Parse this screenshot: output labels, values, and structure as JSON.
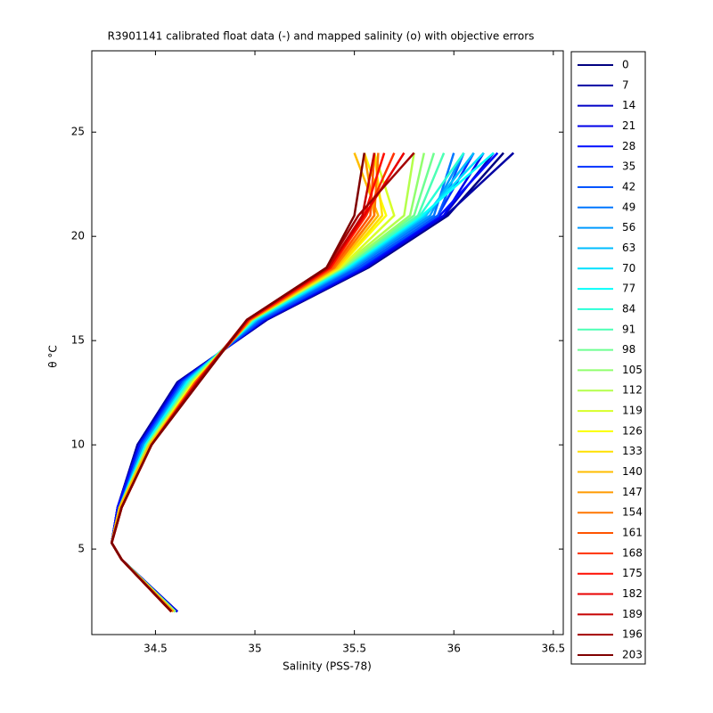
{
  "chart_data": {
    "type": "line",
    "title": "R3901141 calibrated float data (-) and mapped salinity (o) with objective errors",
    "x_label": "Salinity (PSS-78)",
    "y_label": "θ °C",
    "xlim": [
      34.18,
      36.55
    ],
    "ylim": [
      0.9,
      28.9
    ],
    "xticks": [
      34.5,
      35,
      35.5,
      36,
      36.5
    ],
    "yticks": [
      5,
      10,
      15,
      20,
      25
    ],
    "legend": "outside right",
    "series": [
      {
        "name": "0",
        "color": "#000080",
        "x": [
          34.61,
          34.33,
          34.28,
          34.31,
          34.41,
          34.61,
          35.06,
          35.57,
          35.97,
          36.25
        ],
        "values": [
          2,
          4.5,
          5.3,
          7,
          10,
          13,
          16,
          18.5,
          21,
          24
        ]
      },
      {
        "name": "7",
        "color": "#0000a3",
        "x": [
          34.61,
          34.33,
          34.28,
          34.31,
          34.41,
          34.61,
          35.06,
          35.56,
          35.96,
          36.3
        ],
        "values": [
          2,
          4.5,
          5.3,
          7,
          10,
          13,
          16,
          18.5,
          21,
          24
        ]
      },
      {
        "name": "14",
        "color": "#0000c6",
        "x": [
          34.61,
          34.33,
          34.28,
          34.31,
          34.42,
          34.62,
          35.05,
          35.56,
          35.95,
          36.2
        ],
        "values": [
          2,
          4.5,
          5.3,
          7,
          10,
          13,
          16,
          18.5,
          21,
          24
        ]
      },
      {
        "name": "21",
        "color": "#0000e9",
        "x": [
          34.61,
          34.33,
          34.28,
          34.31,
          34.42,
          34.62,
          35.05,
          35.55,
          35.95,
          36.15
        ],
        "values": [
          2,
          4.5,
          5.3,
          7,
          10,
          13,
          16,
          18.5,
          21,
          24
        ]
      },
      {
        "name": "28",
        "color": "#000dff",
        "x": [
          34.6,
          34.33,
          34.28,
          34.31,
          34.42,
          34.63,
          35.04,
          35.54,
          35.93,
          36.22
        ],
        "values": [
          2,
          4.5,
          5.3,
          7,
          10,
          13,
          16,
          18.5,
          21,
          24
        ]
      },
      {
        "name": "35",
        "color": "#0030ff",
        "x": [
          34.6,
          34.33,
          34.28,
          34.32,
          34.43,
          34.63,
          35.04,
          35.53,
          35.92,
          36.1
        ],
        "values": [
          2,
          4.5,
          5.3,
          7,
          10,
          13,
          16,
          18.5,
          21,
          24
        ]
      },
      {
        "name": "42",
        "color": "#0054ff",
        "x": [
          34.6,
          34.33,
          34.28,
          34.32,
          34.43,
          34.64,
          35.03,
          35.52,
          35.92,
          36.05
        ],
        "values": [
          2,
          4.5,
          5.3,
          7,
          10,
          13,
          16,
          18.5,
          21,
          24
        ]
      },
      {
        "name": "49",
        "color": "#0077ff",
        "x": [
          34.6,
          34.33,
          34.28,
          34.32,
          34.44,
          34.64,
          35.02,
          35.5,
          35.9,
          36.0
        ],
        "values": [
          2,
          4.5,
          5.3,
          7,
          10,
          13,
          16,
          18.5,
          21,
          24
        ]
      },
      {
        "name": "56",
        "color": "#009aff",
        "x": [
          34.6,
          34.33,
          34.28,
          34.32,
          34.44,
          34.65,
          35.01,
          35.49,
          35.88,
          36.05
        ],
        "values": [
          2,
          4.5,
          5.3,
          7,
          10,
          13,
          16,
          18.5,
          21,
          24
        ]
      },
      {
        "name": "63",
        "color": "#00bdff",
        "x": [
          34.6,
          34.33,
          34.28,
          34.32,
          34.45,
          34.65,
          35.01,
          35.48,
          35.86,
          36.1
        ],
        "values": [
          2,
          4.5,
          5.3,
          7,
          10,
          13,
          16,
          18.5,
          21,
          24
        ]
      },
      {
        "name": "70",
        "color": "#00e0ff",
        "x": [
          34.6,
          34.33,
          34.28,
          34.32,
          34.45,
          34.66,
          35.0,
          35.47,
          35.85,
          36.15
        ],
        "values": [
          2,
          4.5,
          5.3,
          7,
          10,
          13,
          16,
          18.5,
          21,
          24
        ]
      },
      {
        "name": "77",
        "color": "#04fffb",
        "x": [
          34.6,
          34.33,
          34.28,
          34.32,
          34.45,
          34.66,
          35.0,
          35.46,
          35.84,
          36.2
        ],
        "values": [
          2,
          4.5,
          5.3,
          7,
          10,
          13,
          16,
          18.5,
          21,
          24
        ]
      },
      {
        "name": "84",
        "color": "#28ffd7",
        "x": [
          34.6,
          34.33,
          34.28,
          34.32,
          34.46,
          34.67,
          34.99,
          35.45,
          35.83,
          36.05
        ],
        "values": [
          2,
          4.5,
          5.3,
          7,
          10,
          13,
          16,
          18.5,
          21,
          24
        ]
      },
      {
        "name": "91",
        "color": "#4bffb4",
        "x": [
          34.6,
          34.33,
          34.28,
          34.32,
          34.46,
          34.67,
          34.99,
          35.45,
          35.82,
          35.95
        ],
        "values": [
          2,
          4.5,
          5.3,
          7,
          10,
          13,
          16,
          18.5,
          21,
          24
        ]
      },
      {
        "name": "98",
        "color": "#6eff91",
        "x": [
          34.6,
          34.33,
          34.28,
          34.32,
          34.46,
          34.68,
          34.99,
          35.44,
          35.8,
          35.9
        ],
        "values": [
          2,
          4.5,
          5.3,
          7,
          10,
          13,
          16,
          18.5,
          21,
          24
        ]
      },
      {
        "name": "105",
        "color": "#91ff6e",
        "x": [
          34.6,
          34.33,
          34.28,
          34.32,
          34.46,
          34.68,
          34.98,
          35.44,
          35.78,
          35.85
        ],
        "values": [
          2,
          4.5,
          5.3,
          7,
          10,
          13,
          16,
          18.5,
          21,
          24
        ]
      },
      {
        "name": "112",
        "color": "#b4ff4b",
        "x": [
          34.59,
          34.33,
          34.28,
          34.32,
          34.47,
          34.69,
          34.98,
          35.43,
          35.75,
          35.8
        ],
        "values": [
          2,
          4.5,
          5.3,
          7,
          10,
          13,
          16,
          18.5,
          21,
          24
        ]
      },
      {
        "name": "119",
        "color": "#d7ff28",
        "x": [
          34.59,
          34.33,
          34.28,
          34.32,
          34.47,
          34.69,
          34.98,
          35.43,
          35.7,
          35.6
        ],
        "values": [
          2,
          4.5,
          5.3,
          7,
          10,
          13,
          16,
          18.5,
          21,
          24
        ]
      },
      {
        "name": "126",
        "color": "#fbff04",
        "x": [
          34.59,
          34.33,
          34.28,
          34.32,
          34.47,
          34.69,
          34.98,
          35.42,
          35.66,
          35.55
        ],
        "values": [
          2,
          4.5,
          5.3,
          7,
          10,
          13,
          16,
          18.5,
          21,
          24
        ]
      },
      {
        "name": "133",
        "color": "#ffe000",
        "x": [
          34.59,
          34.33,
          34.28,
          34.32,
          34.47,
          34.7,
          34.98,
          35.42,
          35.64,
          35.6
        ],
        "values": [
          2,
          4.5,
          5.3,
          7,
          10,
          13,
          16,
          18.5,
          21,
          24
        ]
      },
      {
        "name": "140",
        "color": "#ffbd00",
        "x": [
          34.59,
          34.33,
          34.28,
          34.32,
          34.47,
          34.7,
          34.98,
          35.41,
          35.62,
          35.5
        ],
        "values": [
          2,
          4.5,
          5.3,
          7,
          10,
          13,
          16,
          18.5,
          21,
          24
        ]
      },
      {
        "name": "147",
        "color": "#ff9a00",
        "x": [
          34.59,
          34.33,
          34.28,
          34.33,
          34.48,
          34.7,
          34.98,
          35.4,
          35.6,
          35.55
        ],
        "values": [
          2,
          4.5,
          5.3,
          7,
          10,
          13,
          16,
          18.5,
          21,
          24
        ]
      },
      {
        "name": "154",
        "color": "#ff7700",
        "x": [
          34.58,
          34.33,
          34.28,
          34.33,
          34.48,
          34.7,
          34.97,
          35.4,
          35.6,
          35.62
        ],
        "values": [
          2,
          4.5,
          5.3,
          7,
          10,
          13,
          16,
          18.5,
          21,
          24
        ]
      },
      {
        "name": "161",
        "color": "#ff5400",
        "x": [
          34.58,
          34.33,
          34.28,
          34.33,
          34.48,
          34.7,
          34.97,
          35.39,
          35.58,
          35.6
        ],
        "values": [
          2,
          4.5,
          5.3,
          7,
          10,
          13,
          16,
          18.5,
          21,
          24
        ]
      },
      {
        "name": "168",
        "color": "#ff3000",
        "x": [
          34.58,
          34.33,
          34.28,
          34.33,
          34.48,
          34.71,
          34.97,
          35.38,
          35.56,
          35.7
        ],
        "values": [
          2,
          4.5,
          5.3,
          7,
          10,
          13,
          16,
          18.5,
          21,
          24
        ]
      },
      {
        "name": "175",
        "color": "#ff0d00",
        "x": [
          34.58,
          34.33,
          34.28,
          34.33,
          34.48,
          34.71,
          34.97,
          35.38,
          35.55,
          35.65
        ],
        "values": [
          2,
          4.5,
          5.3,
          7,
          10,
          13,
          16,
          18.5,
          21,
          24
        ]
      },
      {
        "name": "182",
        "color": "#e90000",
        "x": [
          34.58,
          34.33,
          34.28,
          34.33,
          34.48,
          34.71,
          34.96,
          35.37,
          35.55,
          35.75
        ],
        "values": [
          2,
          4.5,
          5.3,
          7,
          10,
          13,
          16,
          18.5,
          21,
          24
        ]
      },
      {
        "name": "189",
        "color": "#c60000",
        "x": [
          34.58,
          34.33,
          34.28,
          34.33,
          34.48,
          34.71,
          34.96,
          35.37,
          35.54,
          35.6
        ],
        "values": [
          2,
          4.5,
          5.3,
          7,
          10,
          13,
          16,
          18.5,
          21,
          24
        ]
      },
      {
        "name": "196",
        "color": "#a30000",
        "x": [
          34.58,
          34.33,
          34.28,
          34.33,
          34.48,
          34.72,
          34.96,
          35.36,
          35.52,
          35.8
        ],
        "values": [
          2,
          4.5,
          5.3,
          7,
          10,
          13,
          16,
          18.5,
          21,
          24
        ]
      },
      {
        "name": "203",
        "color": "#800000",
        "x": [
          34.58,
          34.33,
          34.28,
          34.33,
          34.48,
          34.72,
          34.96,
          35.36,
          35.5,
          35.55
        ],
        "values": [
          2,
          4.5,
          5.3,
          7,
          10,
          13,
          16,
          18.5,
          21,
          24
        ]
      }
    ]
  }
}
